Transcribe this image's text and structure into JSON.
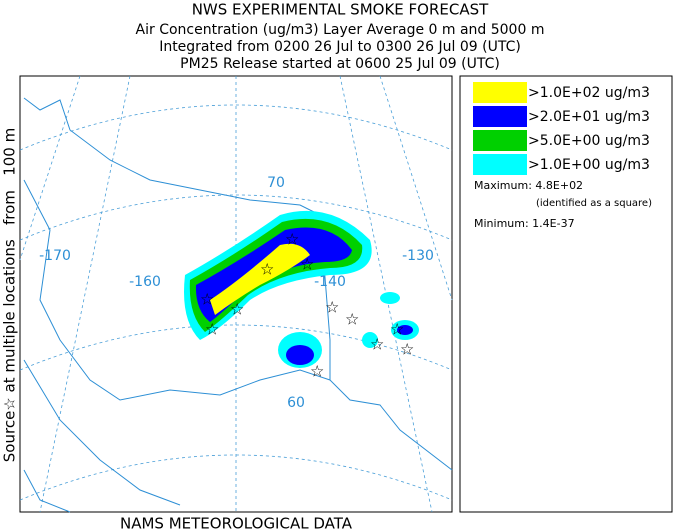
{
  "header": {
    "title": "NWS EXPERIMENTAL SMOKE FORECAST",
    "lines": [
      "Air Concentration (ug/m3) Layer Average    0 m and  5000 m",
      "Integrated from 0200 26 Jul to 0300 26 Jul 09 (UTC)",
      "PM25 Release started at 0600 25 Jul 09 (UTC)"
    ]
  },
  "side_label": "Source☆ at multiple locations   from   100 m",
  "map": {
    "grid_labels": [
      {
        "text": "-170",
        "kind": "lon"
      },
      {
        "text": "-160",
        "kind": "lon"
      },
      {
        "text": "-140",
        "kind": "lon"
      },
      {
        "text": "-130",
        "kind": "lon"
      },
      {
        "text": "70",
        "kind": "lat"
      },
      {
        "text": "60",
        "kind": "lat"
      }
    ]
  },
  "legend": {
    "items": [
      {
        "label": ">1.0E+02 ug/m3",
        "color": "#ffff00"
      },
      {
        "label": ">2.0E+01 ug/m3",
        "color": "#0000ff"
      },
      {
        "label": ">5.0E+00 ug/m3",
        "color": "#00d000"
      },
      {
        "label": ">1.0E+00 ug/m3",
        "color": "#00ffff"
      }
    ],
    "maximum": "Maximum: 4.8E+02",
    "maximum_note": "(identified as a square)",
    "minimum": "Minimum: 1.4E-37"
  },
  "footer": "NAMS METEOROLOGICAL DATA"
}
